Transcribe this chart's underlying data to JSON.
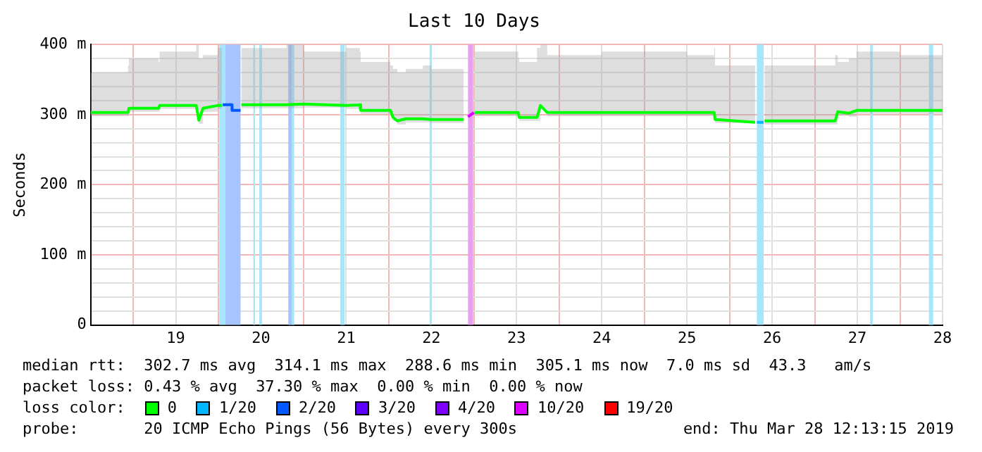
{
  "chart_data": {
    "type": "line",
    "title": "Last 10 Days",
    "ylabel": "Seconds",
    "xlim": [
      18,
      28
    ],
    "xticks": [
      {
        "value": 18.5,
        "label": null
      },
      19,
      {
        "value": 19.5,
        "label": null
      },
      20,
      {
        "value": 20.5,
        "label": null
      },
      21,
      {
        "value": 21.5,
        "label": null
      },
      22,
      {
        "value": 22.5,
        "label": null
      },
      23,
      {
        "value": 23.5,
        "label": null
      },
      24,
      {
        "value": 24.5,
        "label": null
      },
      25,
      {
        "value": 25.5,
        "label": null
      },
      26,
      {
        "value": 26.5,
        "label": null
      },
      27,
      {
        "value": 27.5,
        "label": null
      },
      28
    ],
    "ylim": [
      0,
      400
    ],
    "yticks": [
      0,
      {
        "value": 20,
        "label": null
      },
      {
        "value": 40,
        "label": null
      },
      {
        "value": 60,
        "label": null
      },
      {
        "value": 80,
        "label": null
      },
      {
        "value": 100,
        "label": "100 m"
      },
      {
        "value": 120,
        "label": null
      },
      {
        "value": 140,
        "label": null
      },
      {
        "value": 160,
        "label": null
      },
      {
        "value": 180,
        "label": null
      },
      {
        "value": 200,
        "label": "200 m"
      },
      {
        "value": 220,
        "label": null
      },
      {
        "value": 240,
        "label": null
      },
      {
        "value": 260,
        "label": null
      },
      {
        "value": 280,
        "label": null
      },
      {
        "value": 300,
        "label": "300 m"
      },
      {
        "value": 320,
        "label": null
      },
      {
        "value": 340,
        "label": null
      },
      {
        "value": 360,
        "label": null
      },
      {
        "value": 380,
        "label": null
      },
      {
        "value": 400,
        "label": "400 m"
      }
    ],
    "grid": true,
    "legend": "bottom",
    "legend_title": "loss color:",
    "series": [
      {
        "name": "0",
        "color": "#00ff00",
        "x": [
          18.0,
          18.44,
          18.45,
          18.8,
          18.81,
          19.24,
          19.27,
          19.32,
          19.49,
          19.54,
          19.6,
          19.77,
          20.3,
          20.5,
          21.0,
          21.16,
          21.17,
          21.52,
          21.55,
          21.6,
          21.7,
          21.9,
          22.0,
          22.38,
          22.45,
          22.51,
          23.02,
          23.03,
          23.24,
          23.28,
          23.36,
          24.0,
          25.0,
          25.32,
          25.33,
          25.8,
          25.86,
          25.91,
          26.74,
          26.77,
          26.9,
          26.99,
          27.5,
          28.0
        ],
        "values": [
          303,
          303,
          309,
          309,
          313,
          313,
          292,
          309,
          313,
          313,
          null,
          314,
          314,
          315,
          313,
          314,
          306,
          306,
          296,
          291,
          294,
          294,
          293,
          293,
          null,
          303,
          303,
          296,
          296,
          313,
          303,
          303,
          303,
          303,
          293,
          289,
          null,
          291,
          291,
          304,
          302,
          306,
          306,
          306
        ],
        "lower": [
          298,
          298,
          304,
          304,
          308,
          308,
          287,
          304,
          308,
          308,
          null,
          309,
          309,
          310,
          308,
          309,
          301,
          301,
          291,
          286,
          289,
          289,
          288,
          288,
          null,
          298,
          298,
          291,
          291,
          308,
          298,
          298,
          298,
          298,
          288,
          284,
          null,
          286,
          286,
          299,
          297,
          301,
          301,
          301
        ],
        "upper": [
          360,
          370,
          380,
          375,
          390,
          400,
          380,
          385,
          395,
          400,
          null,
          395,
          400,
          390,
          395,
          390,
          375,
          370,
          365,
          360,
          365,
          370,
          365,
          370,
          null,
          390,
          380,
          375,
          395,
          400,
          385,
          390,
          385,
          395,
          370,
          365,
          null,
          370,
          385,
          375,
          380,
          390,
          385,
          380
        ]
      },
      {
        "name": "1/20",
        "color": "#00b8ff",
        "x": [
          25.82,
          25.9
        ],
        "values": [
          289,
          289
        ]
      },
      {
        "name": "2/20",
        "color": "#0059ff",
        "x": [
          19.55,
          19.66,
          19.66,
          19.76
        ],
        "values": [
          314,
          314,
          306,
          306
        ]
      },
      {
        "name": "3/20",
        "color": "#5e00ff"
      },
      {
        "name": "4/20",
        "color": "#7e00ff"
      },
      {
        "name": "10/20",
        "color": "#dd00ff",
        "x": [
          22.43,
          22.5
        ],
        "values": [
          297,
          303
        ]
      },
      {
        "name": "19/20",
        "color": "#ff0000"
      }
    ],
    "bands": [
      {
        "axis": "x",
        "from": 19.51,
        "to": 19.58,
        "color": "#a6e6fb"
      },
      {
        "axis": "x",
        "from": 19.58,
        "to": 19.76,
        "color": "#a8c4ff"
      },
      {
        "axis": "x",
        "from": 19.91,
        "to": 19.93,
        "color": "#a6e6fb"
      },
      {
        "axis": "x",
        "from": 19.98,
        "to": 20.01,
        "color": "#a6e6fb"
      },
      {
        "axis": "x",
        "from": 20.32,
        "to": 20.36,
        "color": "#a8c4ff"
      },
      {
        "axis": "x",
        "from": 20.36,
        "to": 20.39,
        "color": "#a6e6fb"
      },
      {
        "axis": "x",
        "from": 20.93,
        "to": 20.98,
        "color": "#a6e6fb"
      },
      {
        "axis": "x",
        "from": 21.98,
        "to": 22.0,
        "color": "#a6e6fb"
      },
      {
        "axis": "x",
        "from": 22.43,
        "to": 22.49,
        "color": "#e8a0f0"
      },
      {
        "axis": "x",
        "from": 25.82,
        "to": 25.9,
        "color": "#a6e6fb"
      },
      {
        "axis": "x",
        "from": 27.15,
        "to": 27.18,
        "color": "#a6e6fb"
      },
      {
        "axis": "x",
        "from": 27.84,
        "to": 27.89,
        "color": "#a6e6fb"
      }
    ],
    "annotations": [
      "median rtt:  302.7 ms avg  314.1 ms max  288.6 ms min  305.1 ms now  7.0 ms sd  43.3   am/s",
      "packet loss: 0.43 % avg  37.30 % max  0.00 % min  0.00 % now",
      "probe:       20 ICMP Echo Pings (56 Bytes) every 300s",
      "end: Thu Mar 28 12:13:15 2019"
    ]
  }
}
